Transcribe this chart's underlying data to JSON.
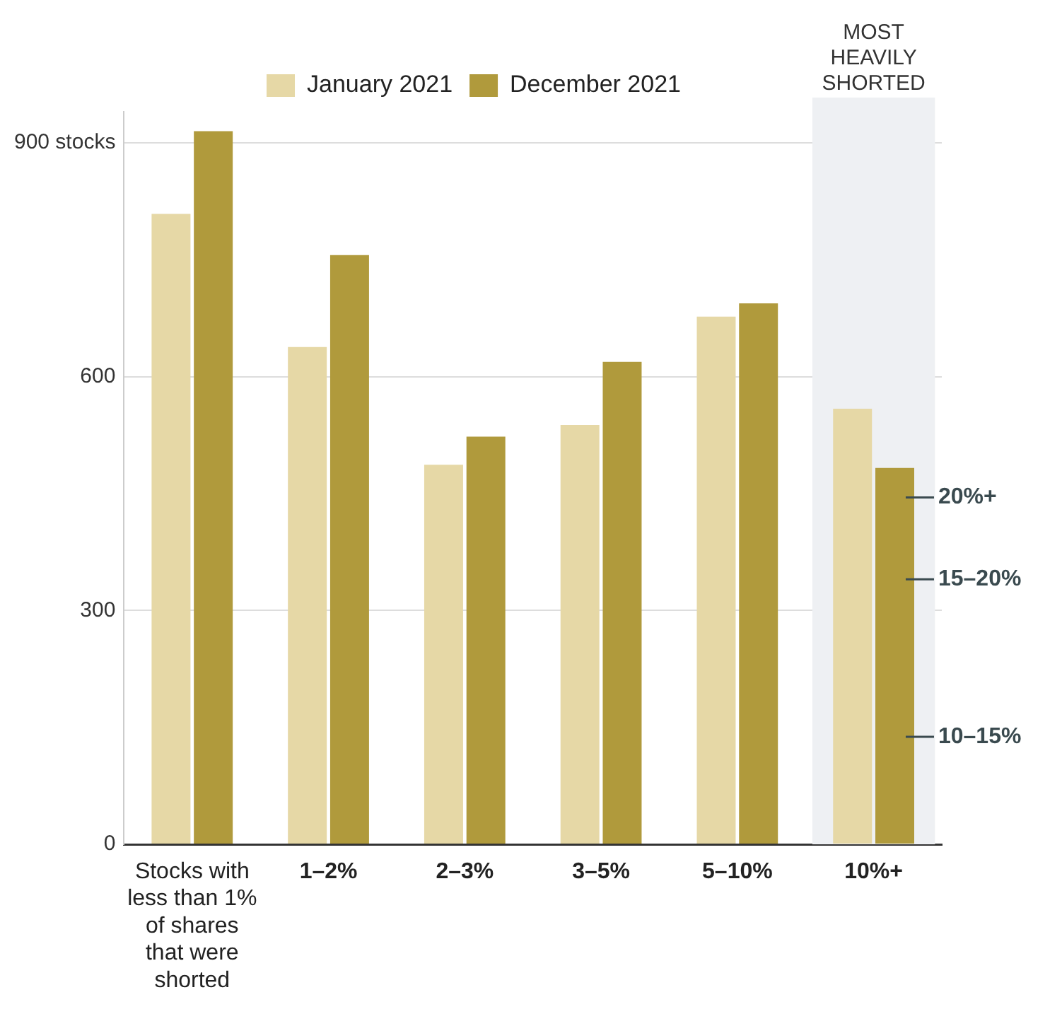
{
  "chart_data": {
    "type": "bar",
    "categories": [
      "Stocks with less than 1% of shares that were shorted",
      "1–2%",
      "2–3%",
      "3–5%",
      "5–10%",
      "10%+"
    ],
    "series": [
      {
        "name": "January 2021",
        "color": "#e6d8a6",
        "values": [
          809,
          638,
          487,
          538,
          677,
          559
        ]
      },
      {
        "name": "December 2021",
        "color": "#b09a3c",
        "values": [
          915,
          756,
          523,
          619,
          694,
          483
        ]
      }
    ],
    "ylim": [
      0,
      940
    ],
    "yticks": [
      0,
      300,
      600,
      {
        "value": 900,
        "label": "900 stocks"
      }
    ],
    "grid": "y",
    "legend": "top",
    "bands": [
      {
        "axis": "x",
        "from": "10%+",
        "to": "10%+",
        "label": "MOST HEAVILY SHORTED",
        "color": "#eef0f3"
      }
    ],
    "annotations": [
      {
        "text": "20%+",
        "x": "10%+",
        "y": 445
      },
      {
        "text": "15–20%",
        "x": "10%+",
        "y": 340
      },
      {
        "text": "10–15%",
        "x": "10%+",
        "y": 138
      }
    ]
  }
}
